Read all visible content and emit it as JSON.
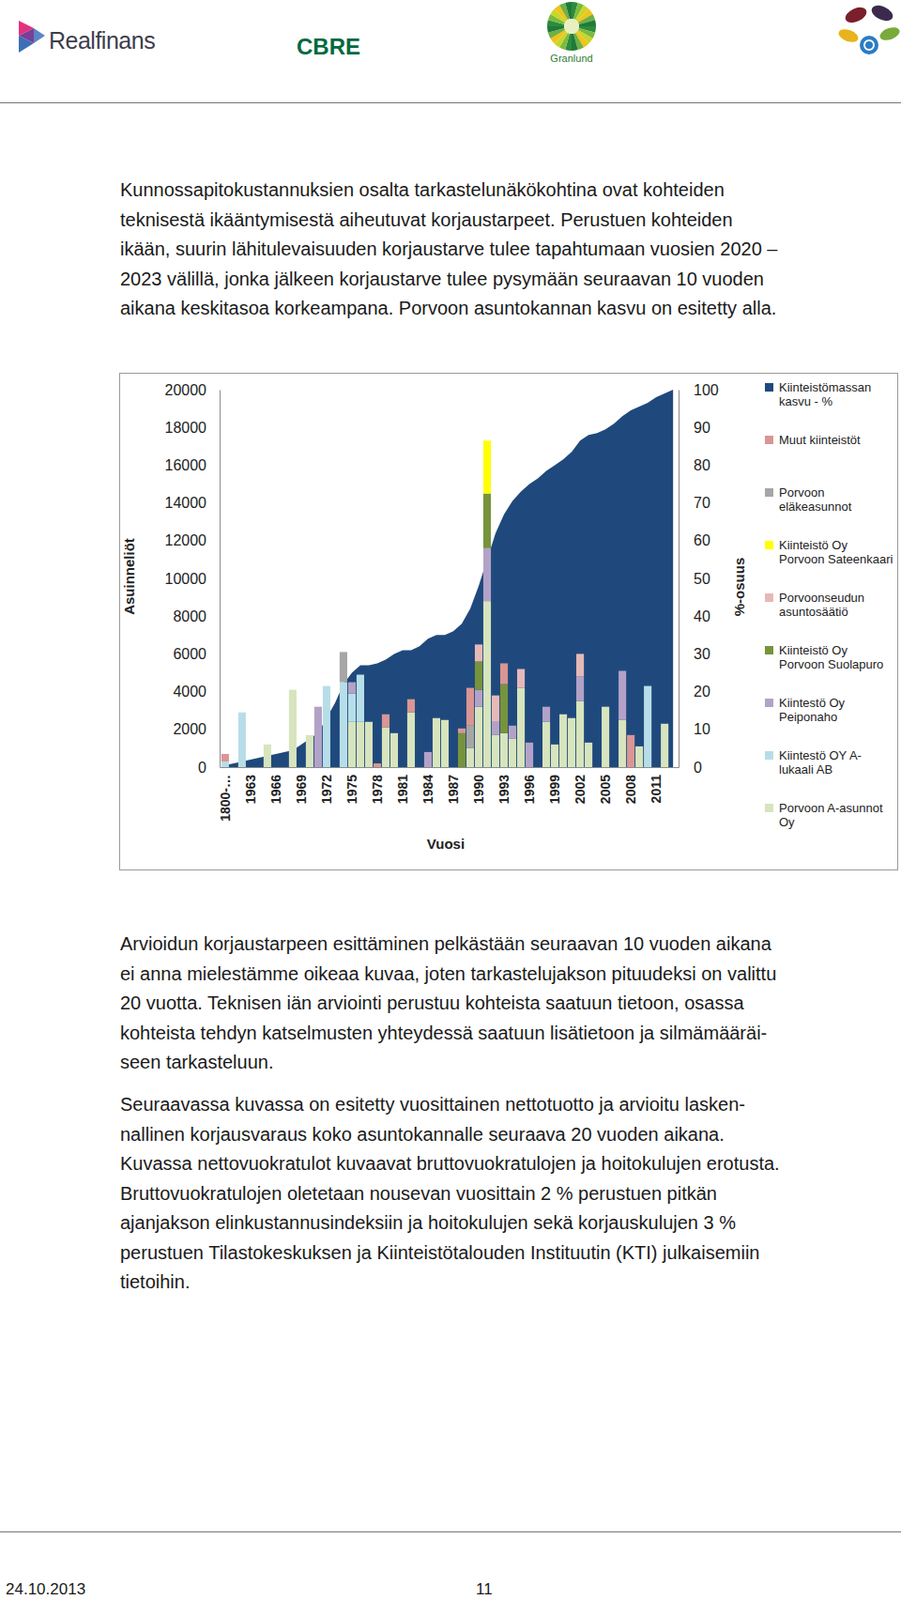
{
  "header": {
    "logos": [
      "Realfinans",
      "CBRE",
      "Granlund"
    ]
  },
  "paragraphs": [
    [
      "Kunnossapitokustannuksien osalta tarkastelunäkökohtina ovat kohteiden",
      "teknisestä ikääntymisestä aiheutuvat korjaustarpeet. Perustuen kohteiden",
      "ikään, suurin lähitulevaisuuden korjaustarve tulee tapahtumaan vuosien 2020 –",
      "2023 välillä, jonka jälkeen korjaustarve tulee pysymään seuraavan 10 vuoden",
      "aikana keskitasoa korkeampana. Porvoon asuntokannan kasvu on esitetty alla."
    ],
    [
      "Arvioidun korjaustarpeen esittäminen pelkästään seuraavan 10 vuoden aikana",
      "ei anna mielestämme oikeaa kuvaa, joten tarkastelujakson pituudeksi on valittu",
      "20 vuotta. Teknisen iän arviointi perustuu kohteista saatuun tietoon, osassa",
      "kohteista tehdyn katselmusten yhteydessä saatuun lisätietoon ja silmämääräi-",
      "seen tarkasteluun."
    ],
    [
      "Seuraavassa kuvassa on esitetty vuosittainen nettotuotto ja arvioitu lasken-",
      "nallinen korjausvaraus koko asuntokannalle seuraava 20 vuoden aikana.",
      "Kuvassa nettovuokratulot kuvaavat bruttovuokratulojen ja hoitokulujen erotusta.",
      "Bruttovuokratulojen oletetaan nousevan vuosittain 2 % perustuen pitkän",
      "ajanjakson elinkustannusindeksiin ja hoitokulujen sekä korjauskulujen 3 %",
      "perustuen Tilastokeskuksen ja Kiinteistötalouden Instituutin (KTI) julkaisemiin",
      "tietoihin."
    ]
  ],
  "chart_data": {
    "type": "bar",
    "stacked": true,
    "legend": "right",
    "x_label": "Vuosi",
    "y_label": "Asuinneliöt",
    "y2_label": "%-osuus",
    "categories": [
      "1800-…",
      null,
      null,
      "1963",
      null,
      null,
      "1966",
      null,
      null,
      "1969",
      null,
      null,
      "1972",
      null,
      null,
      "1975",
      null,
      null,
      "1978",
      null,
      null,
      "1981",
      null,
      null,
      "1984",
      null,
      null,
      "1987",
      null,
      null,
      "1990",
      null,
      null,
      "1993",
      null,
      null,
      "1996",
      null,
      null,
      "1999",
      null,
      null,
      "2002",
      null,
      null,
      "2005",
      null,
      null,
      "2008",
      null,
      null,
      "2011",
      null,
      null
    ],
    "ylim": [
      0,
      20000
    ],
    "yticks": [
      0,
      2000,
      4000,
      6000,
      8000,
      10000,
      12000,
      14000,
      16000,
      18000,
      20000
    ],
    "y2lim": [
      0,
      100
    ],
    "y2ticks": [
      0,
      10,
      20,
      30,
      40,
      50,
      60,
      70,
      80,
      90,
      100
    ],
    "series": [
      {
        "name": "Porvoon A-asunnot Oy",
        "color": "#D7E4BD",
        "values": [
          0,
          0,
          0,
          0,
          0,
          1200,
          0,
          0,
          4100,
          0,
          1700,
          0,
          0,
          0,
          0,
          2400,
          2400,
          2400,
          0,
          2100,
          1800,
          0,
          2900,
          0,
          0,
          2600,
          2500,
          0,
          0,
          1000,
          3200,
          8800,
          1700,
          1800,
          1500,
          4200,
          0,
          0,
          2400,
          1200,
          2800,
          2600,
          3500,
          1300,
          0,
          3200,
          0,
          2500,
          0,
          1100,
          0,
          0,
          2300,
          0
        ]
      },
      {
        "name": "Kiintestö OY A-lukaali AB",
        "color": "#B7DEE8",
        "values": [
          300,
          0,
          2900,
          0,
          0,
          0,
          0,
          0,
          0,
          0,
          0,
          0,
          4300,
          0,
          4500,
          1500,
          2500,
          0,
          0,
          0,
          0,
          0,
          0,
          0,
          0,
          0,
          0,
          0,
          0,
          0,
          0,
          0,
          0,
          0,
          0,
          0,
          0,
          0,
          0,
          0,
          0,
          0,
          0,
          0,
          0,
          0,
          0,
          0,
          0,
          0,
          4300,
          0,
          0,
          0
        ]
      },
      {
        "name": "Kiintestö Oy Peiponaho",
        "color": "#B3A2C7",
        "values": [
          0,
          0,
          0,
          0,
          0,
          0,
          0,
          0,
          0,
          0,
          0,
          3200,
          0,
          0,
          0,
          600,
          0,
          0,
          0,
          0,
          0,
          0,
          0,
          0,
          800,
          0,
          0,
          0,
          0,
          0,
          900,
          2800,
          700,
          0,
          700,
          0,
          1300,
          0,
          800,
          0,
          0,
          0,
          1300,
          0,
          0,
          0,
          0,
          2600,
          0,
          0,
          0,
          0,
          0,
          0
        ]
      },
      {
        "name": "Kiinteistö Oy Porvoon Suolapuro",
        "color": "#77933C",
        "values": [
          0,
          0,
          0,
          0,
          0,
          0,
          0,
          0,
          0,
          0,
          0,
          0,
          0,
          0,
          0,
          0,
          0,
          0,
          0,
          0,
          0,
          0,
          0,
          0,
          0,
          0,
          0,
          0,
          1800,
          0,
          1500,
          2900,
          0,
          2600,
          0,
          0,
          0,
          0,
          0,
          0,
          0,
          0,
          0,
          0,
          0,
          0,
          0,
          0,
          0,
          0,
          0,
          0,
          0,
          0
        ]
      },
      {
        "name": "Porvoonseudun asuntosäätiö",
        "color": "#E6B9B8",
        "values": [
          0,
          0,
          0,
          0,
          0,
          0,
          0,
          0,
          0,
          0,
          0,
          0,
          0,
          0,
          0,
          0,
          0,
          0,
          0,
          0,
          0,
          0,
          0,
          0,
          0,
          0,
          0,
          0,
          0,
          0,
          900,
          0,
          1400,
          0,
          0,
          1000,
          0,
          0,
          0,
          0,
          0,
          0,
          1200,
          0,
          0,
          0,
          0,
          0,
          0,
          0,
          0,
          0,
          0,
          0
        ]
      },
      {
        "name": "Kiinteistö Oy Porvoon Sateenkaari",
        "color": "#FFFF00",
        "values": [
          0,
          0,
          0,
          0,
          0,
          0,
          0,
          0,
          0,
          0,
          0,
          0,
          0,
          0,
          0,
          0,
          0,
          0,
          0,
          0,
          0,
          0,
          0,
          0,
          0,
          0,
          0,
          0,
          0,
          0,
          0,
          2800,
          0,
          0,
          0,
          0,
          0,
          0,
          0,
          0,
          0,
          0,
          0,
          0,
          0,
          0,
          0,
          0,
          0,
          0,
          0,
          0,
          0,
          0
        ]
      },
      {
        "name": "Porvoon eläkeasunnot",
        "color": "#A6A6A6",
        "values": [
          0,
          0,
          0,
          0,
          0,
          0,
          0,
          0,
          0,
          0,
          0,
          0,
          0,
          0,
          1600,
          0,
          0,
          0,
          0,
          0,
          0,
          0,
          0,
          0,
          0,
          0,
          0,
          0,
          0,
          1200,
          0,
          0,
          0,
          0,
          0,
          0,
          0,
          0,
          0,
          0,
          0,
          0,
          0,
          0,
          0,
          0,
          0,
          0,
          0,
          0,
          0,
          0,
          0,
          0
        ]
      },
      {
        "name": "Muut kiinteistöt",
        "color": "#D99694",
        "values": [
          400,
          0,
          0,
          0,
          0,
          0,
          0,
          0,
          0,
          0,
          0,
          0,
          0,
          0,
          0,
          0,
          0,
          0,
          200,
          700,
          0,
          0,
          700,
          0,
          0,
          0,
          0,
          0,
          250,
          2000,
          0,
          0,
          0,
          1100,
          0,
          0,
          0,
          0,
          0,
          0,
          0,
          0,
          0,
          0,
          0,
          0,
          0,
          0,
          1700,
          0,
          0,
          0,
          0,
          0
        ]
      },
      {
        "name": "Kiinteistömassan kasvu - %",
        "color": "#1F497D",
        "type": "area",
        "axis": "y2",
        "values": [
          0.5,
          1,
          1.5,
          2,
          2.5,
          3,
          3.5,
          4,
          4.5,
          6,
          7.5,
          9,
          13,
          17,
          22,
          25,
          27,
          27,
          27.5,
          28.5,
          30,
          31,
          31,
          32,
          34,
          35,
          35,
          36,
          38,
          42,
          48,
          55,
          62,
          67,
          70.5,
          73,
          75,
          76.5,
          78.5,
          80,
          81.5,
          83.5,
          86.5,
          88,
          88.5,
          89.5,
          91,
          93,
          94.5,
          95.5,
          96.5,
          98,
          99,
          100
        ]
      }
    ]
  },
  "footer": {
    "date": "24.10.2013",
    "page": 11
  }
}
